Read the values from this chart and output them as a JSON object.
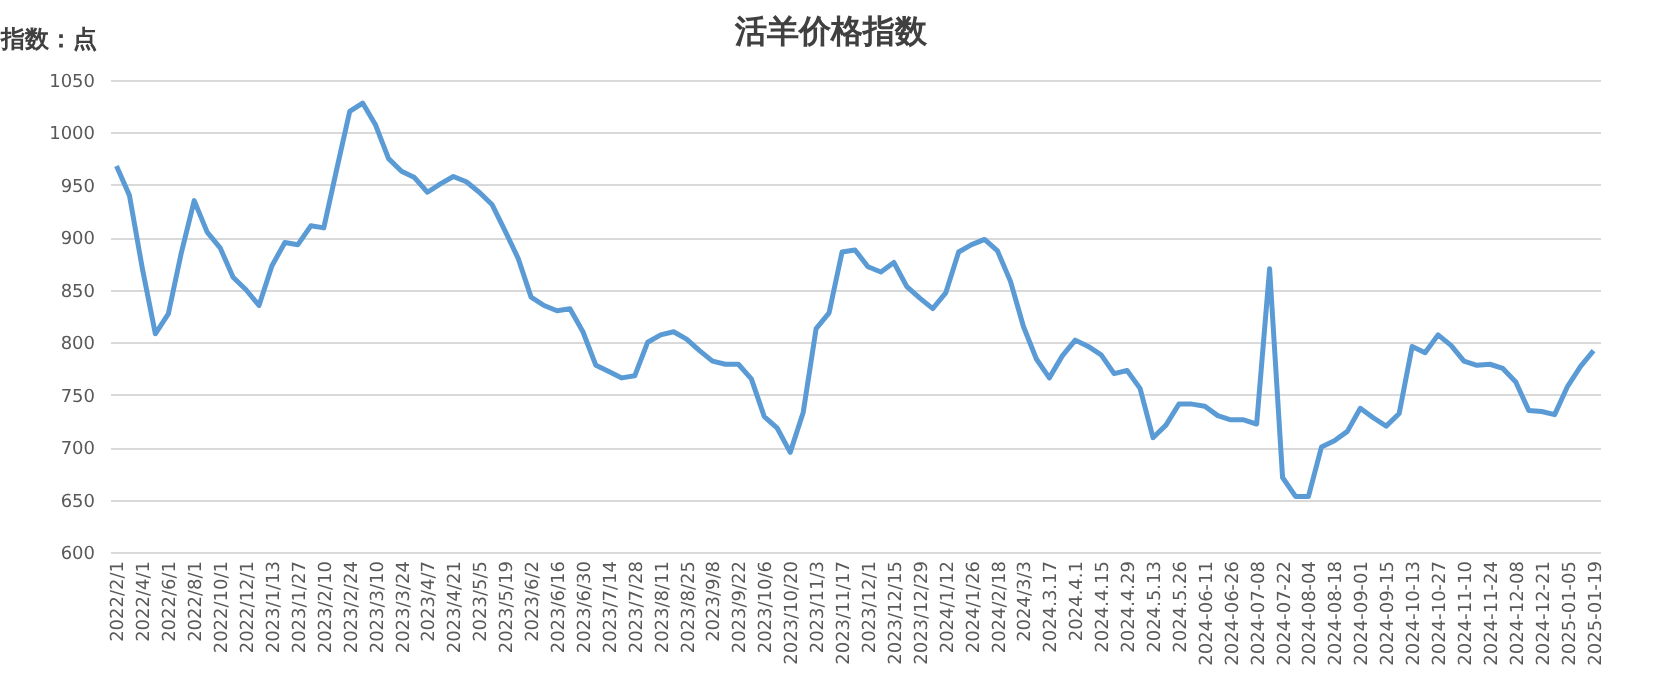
{
  "chart_data": {
    "type": "line",
    "title": "活羊价格指数",
    "ylabel": "指数：点",
    "categories": [
      "2022/2/1",
      null,
      "2022/4/1",
      null,
      "2022/6/1",
      null,
      "2022/8/1",
      null,
      "2022/10/1",
      null,
      "2022/12/1",
      null,
      "2023/1/13",
      null,
      "2023/1/27",
      null,
      "2023/2/10",
      null,
      "2023/2/24",
      null,
      "2023/3/10",
      null,
      "2023/3/24",
      null,
      "2023/4/7",
      null,
      "2023/4/21",
      null,
      "2023/5/5",
      null,
      "2023/5/19",
      null,
      "2023/6/2",
      null,
      "2023/6/16",
      null,
      "2023/6/30",
      null,
      "2023/7/14",
      null,
      "2023/7/28",
      null,
      "2023/8/11",
      null,
      "2023/8/25",
      null,
      "2023/9/8",
      null,
      "2023/9/22",
      null,
      "2023/10/6",
      null,
      "2023/10/20",
      null,
      "2023/11/3",
      null,
      "2023/11/17",
      null,
      "2023/12/1",
      null,
      "2023/12/15",
      null,
      "2023/12/29",
      null,
      "2024/1/12",
      null,
      "2024/1/26",
      null,
      "2024/2/18",
      null,
      "2024/3/3",
      null,
      "2024.3.17",
      null,
      "2024.4.1",
      null,
      "2024.4.15",
      null,
      "2024.4.29",
      null,
      "2024.5.13",
      null,
      "2024.5.26",
      null,
      "2024-06-11",
      null,
      "2024-06-26",
      null,
      "2024-07-08",
      null,
      "2024-07-22",
      null,
      "2024-08-04",
      null,
      "2024-08-18",
      null,
      "2024-09-01",
      null,
      "2024-09-15",
      null,
      "2024-10-13",
      null,
      "2024-10-27",
      null,
      "2024-11-10",
      null,
      "2024-11-24",
      null,
      "2024-12-08",
      null,
      "2024-12-21",
      null,
      "2025-01-05",
      null,
      "2025-01-19"
    ],
    "series": [
      {
        "color": "#5b9bd5",
        "values": [
          968,
          940,
          870,
          808,
          827,
          885,
          935,
          905,
          890,
          862,
          850,
          835,
          873,
          895,
          893,
          911,
          909,
          965,
          1020,
          1028,
          1007,
          975,
          963,
          957,
          943,
          951,
          958,
          953,
          943,
          931,
          906,
          880,
          843,
          835,
          830,
          832,
          810,
          778,
          772,
          766,
          768,
          800,
          807,
          810,
          803,
          792,
          782,
          779,
          779,
          765,
          729,
          718,
          695,
          733,
          813,
          828,
          886,
          888,
          872,
          867,
          876,
          853,
          842,
          832,
          847,
          886,
          893,
          898,
          887,
          858,
          815,
          784,
          766,
          787,
          802,
          796,
          788,
          770,
          773,
          756,
          709,
          721,
          741,
          741,
          739,
          730,
          726,
          726,
          722,
          870,
          671,
          653,
          653,
          700,
          706,
          715,
          737,
          728,
          720,
          732,
          796,
          790,
          807,
          797,
          782,
          778,
          779,
          775,
          762,
          735,
          734,
          731,
          758,
          777,
          792
        ]
      }
    ],
    "ylim": [
      600,
      1050
    ],
    "yticks": [
      600,
      650,
      700,
      750,
      800,
      850,
      900,
      950,
      1000,
      1050
    ],
    "grid": "y"
  }
}
